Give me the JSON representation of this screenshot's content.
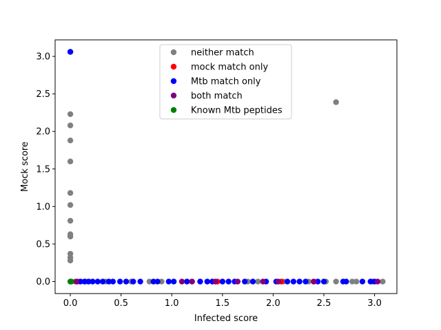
{
  "chart_data": {
    "type": "scatter",
    "title": "",
    "xlabel": "Infected score",
    "ylabel": "Mock score",
    "xlim": [
      -0.15,
      3.22
    ],
    "ylim": [
      -0.16,
      3.22
    ],
    "xticks": [
      "0.0",
      "0.5",
      "1.0",
      "1.5",
      "2.0",
      "2.5",
      "3.0"
    ],
    "yticks": [
      "0.0",
      "0.5",
      "1.0",
      "1.5",
      "2.0",
      "2.5",
      "3.0"
    ],
    "grid": false,
    "legend_position": "top-center",
    "series": [
      {
        "name": "neither match",
        "color": "#808080",
        "x": [
          0.0,
          0.0,
          0.0,
          0.0,
          0.0,
          0.0,
          0.0,
          0.0,
          0.0,
          0.0,
          0.0,
          0.0,
          0.0,
          2.62,
          0.05,
          0.15,
          0.35,
          0.6,
          0.78,
          0.9,
          1.2,
          1.5,
          1.75,
          1.85,
          2.1,
          2.35,
          2.52,
          2.62,
          2.78,
          2.82,
          2.98,
          3.08
        ],
        "y": [
          3.06,
          2.23,
          2.08,
          1.88,
          1.6,
          1.18,
          1.02,
          0.81,
          0.63,
          0.6,
          0.37,
          0.32,
          0.28,
          2.39,
          0.0,
          0.0,
          0.0,
          0.0,
          0.0,
          0.0,
          0.0,
          0.0,
          0.0,
          0.0,
          0.0,
          0.0,
          0.0,
          0.0,
          0.0,
          0.0,
          0.0,
          0.0
        ]
      },
      {
        "name": "mock match only",
        "color": "#ff0000",
        "x": [
          0.07,
          1.45,
          2.08,
          2.4
        ],
        "y": [
          0.0,
          0.0,
          0.0,
          0.0
        ]
      },
      {
        "name": "Mtb match only",
        "color": "#0000ff",
        "x": [
          0.0,
          0.1,
          0.14,
          0.18,
          0.22,
          0.27,
          0.32,
          0.38,
          0.42,
          0.49,
          0.55,
          0.62,
          0.69,
          0.82,
          0.86,
          0.97,
          1.02,
          1.15,
          1.28,
          1.35,
          1.4,
          1.5,
          1.56,
          1.62,
          1.72,
          1.8,
          1.93,
          2.03,
          2.14,
          2.2,
          2.26,
          2.32,
          2.44,
          2.5,
          2.69,
          2.72,
          2.88,
          2.96,
          3.0
        ],
        "y": [
          3.06,
          0.0,
          0.0,
          0.0,
          0.0,
          0.0,
          0.0,
          0.0,
          0.0,
          0.0,
          0.0,
          0.0,
          0.0,
          0.0,
          0.0,
          0.0,
          0.0,
          0.0,
          0.0,
          0.0,
          0.0,
          0.0,
          0.0,
          0.0,
          0.0,
          0.0,
          0.0,
          0.0,
          0.0,
          0.0,
          0.0,
          0.0,
          0.0,
          0.0,
          0.0,
          0.0,
          0.0,
          0.0,
          0.0
        ]
      },
      {
        "name": "both match",
        "color": "#800080",
        "x": [
          0.06,
          1.1,
          1.2,
          1.43,
          1.65,
          1.9,
          2.05,
          2.4,
          3.03
        ],
        "y": [
          0.0,
          0.0,
          0.0,
          0.0,
          0.0,
          0.0,
          0.0,
          0.0,
          0.0
        ]
      },
      {
        "name": "Known Mtb peptides",
        "color": "#008000",
        "x": [
          0.0,
          0.01
        ],
        "y": [
          0.0,
          0.0
        ]
      }
    ]
  }
}
